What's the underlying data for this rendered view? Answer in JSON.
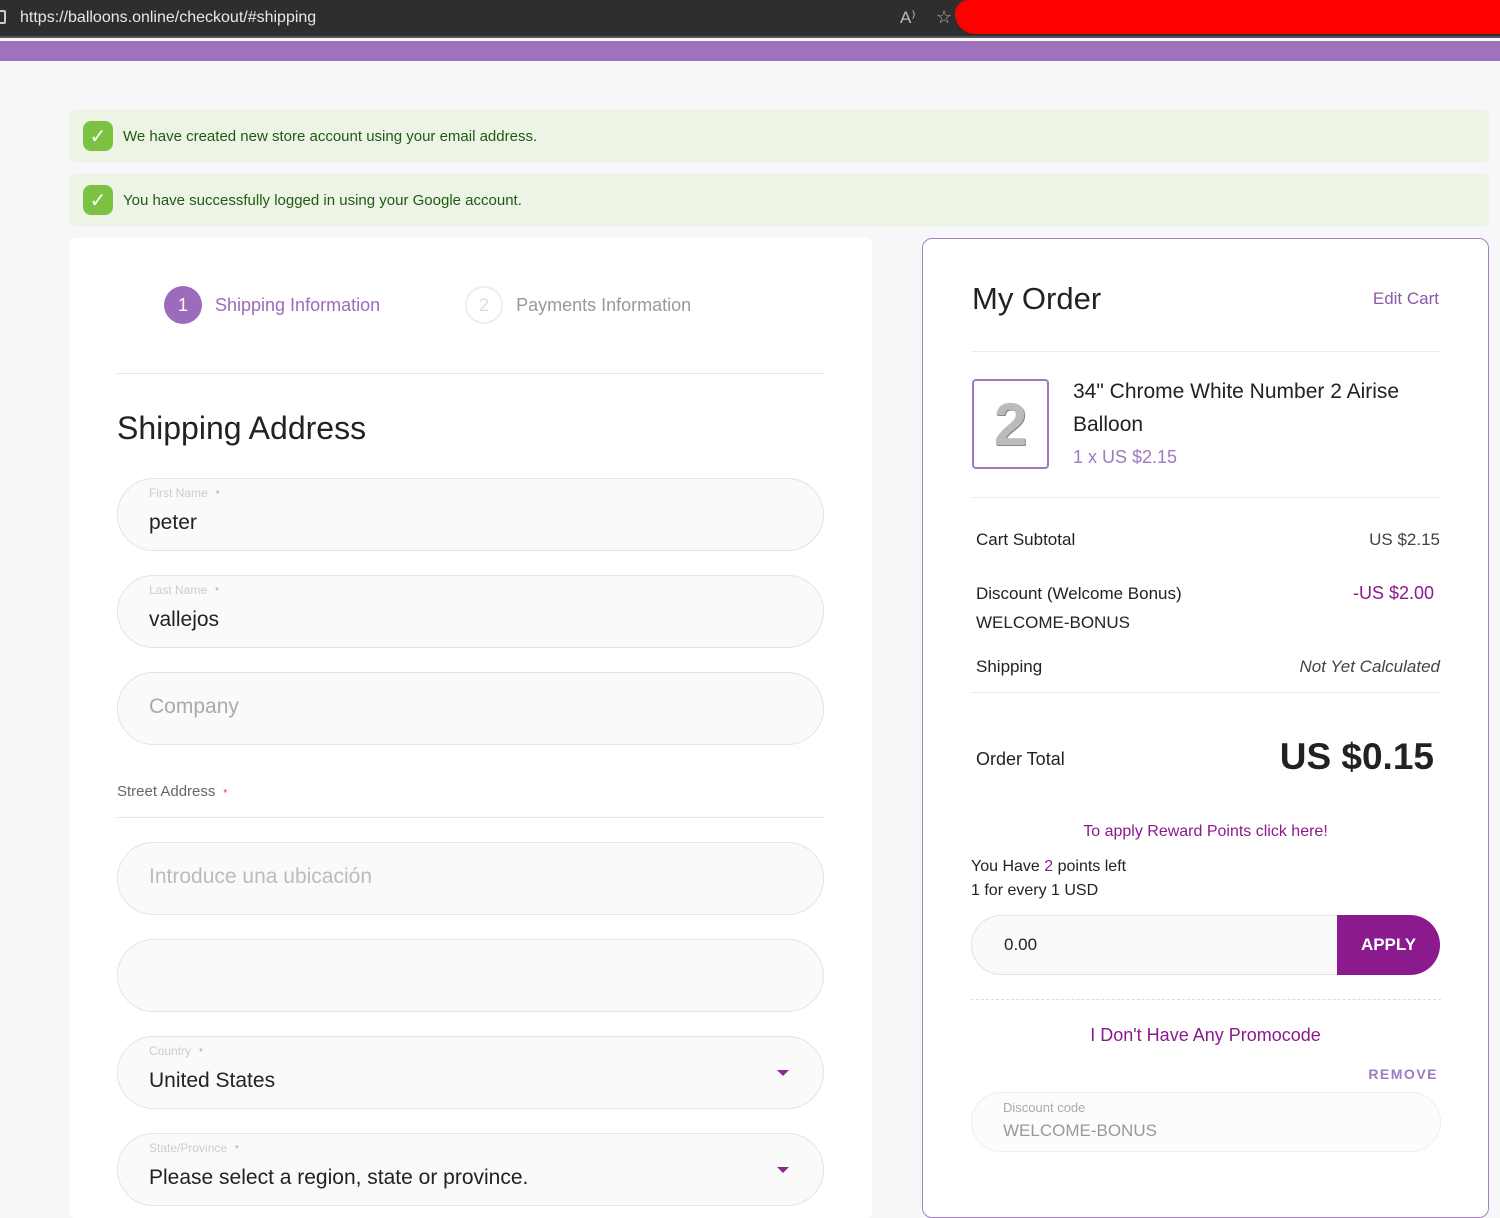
{
  "browser": {
    "url": "https://balloons.online/checkout/#shipping"
  },
  "messages": [
    {
      "text": "We have created new store account using your email address."
    },
    {
      "text": "You have successfully logged in using your Google account."
    }
  ],
  "steps": [
    {
      "num": "1",
      "label": "Shipping Information",
      "active": true
    },
    {
      "num": "2",
      "label": "Payments Information",
      "active": false
    }
  ],
  "shipping": {
    "title": "Shipping Address",
    "first_name": {
      "label": "First Name",
      "value": "peter"
    },
    "last_name": {
      "label": "Last Name",
      "value": "vallejos"
    },
    "company": {
      "placeholder": "Company"
    },
    "street_label": "Street Address",
    "street_placeholder": "Introduce una ubicación",
    "country": {
      "label": "Country",
      "value": "United States"
    },
    "state": {
      "label": "State/Province",
      "value": "Please select a region, state or province."
    },
    "required_mark": "*"
  },
  "order": {
    "title": "My Order",
    "edit_cart": "Edit Cart",
    "item": {
      "thumb_glyph": "2",
      "name": "34\" Chrome White Number 2 Airise Balloon",
      "price": "1 x US $2.15"
    },
    "subtotal_label": "Cart Subtotal",
    "subtotal": "US $2.15",
    "discount_label": "Discount (Welcome Bonus)",
    "discount_code": "WELCOME-BONUS",
    "discount": "-US $2.00",
    "shipping_label": "Shipping",
    "shipping": "Not Yet Calculated",
    "total_label": "Order Total",
    "total": "US $0.15",
    "reward_link": "To apply Reward Points click here!",
    "points_prefix": "You Have",
    "points": "2",
    "points_suffix": "points left",
    "rate": "1 for every 1 USD",
    "points_input": "0.00",
    "apply": "APPLY",
    "no_promo": "I Don't Have Any Promocode",
    "remove": "REMOVE",
    "discount_field_label": "Discount code",
    "discount_field_value": "WELCOME-BONUS"
  },
  "colors": {
    "brand": "#8a1a8e",
    "accent": "#a072bb",
    "success": "#7cc242"
  }
}
